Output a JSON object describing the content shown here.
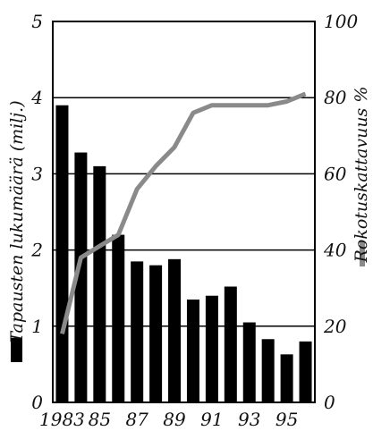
{
  "chart_data": {
    "type": "bar+line",
    "title": "",
    "x_tick_labels": [
      "1983",
      "85",
      "87",
      "89",
      "91",
      "93",
      "95"
    ],
    "left_axis": {
      "label": "Tapausten lukumäärä (milj.)",
      "ylim": [
        0,
        5
      ],
      "ticks": [
        "0",
        "1",
        "2",
        "3",
        "4",
        "5"
      ]
    },
    "right_axis": {
      "label": "Rokotuskattavuus %",
      "ylim": [
        0,
        100
      ],
      "ticks": [
        "0",
        "20",
        "40",
        "60",
        "80",
        "100"
      ]
    },
    "x": [
      1983,
      1984,
      1985,
      1986,
      1987,
      1988,
      1989,
      1990,
      1991,
      1992,
      1993,
      1994,
      1995,
      1996
    ],
    "series": [
      {
        "type": "bar",
        "axis": "left",
        "values": [
          3.9,
          3.28,
          3.1,
          2.2,
          1.85,
          1.8,
          1.88,
          1.35,
          1.4,
          1.52,
          1.05,
          0.83,
          0.63,
          0.8
        ]
      },
      {
        "type": "line",
        "axis": "right",
        "values": [
          18,
          38,
          41,
          44,
          56,
          62,
          67,
          76,
          78,
          78,
          78,
          78,
          79,
          81
        ]
      }
    ],
    "grid": "horizontal",
    "colors": {
      "bars": "#000000",
      "line": "#8a8a8a"
    }
  }
}
